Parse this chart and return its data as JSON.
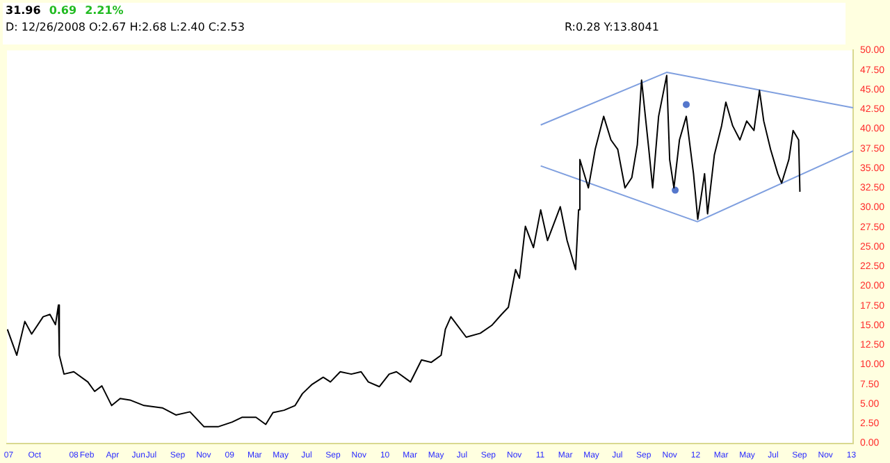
{
  "chart_data": {
    "type": "line",
    "annotations": [
      "31.96",
      "0.69",
      "2.21%",
      "D: 12/26/2008 O:2.67 H:2.68 L:2.40 C:2.53",
      "R:0.28 Y:13.8041"
    ],
    "xlim": [
      "2007-07-28",
      "2013-01-05"
    ],
    "xticks": [
      {
        "value": "2007-08-01",
        "label": "07"
      },
      {
        "value": "2007-10-01",
        "label": "Oct"
      },
      {
        "value": "2008-01-01",
        "label": "08"
      },
      {
        "value": "2008-02-01",
        "label": "Feb"
      },
      {
        "value": "2008-04-01",
        "label": "Apr"
      },
      {
        "value": "2008-06-01",
        "label": "Jun"
      },
      {
        "value": "2008-07-01",
        "label": "Jul"
      },
      {
        "value": "2008-09-01",
        "label": "Sep"
      },
      {
        "value": "2008-11-01",
        "label": "Nov"
      },
      {
        "value": "2009-01-01",
        "label": "09"
      },
      {
        "value": "2009-03-01",
        "label": "Mar"
      },
      {
        "value": "2009-05-01",
        "label": "May"
      },
      {
        "value": "2009-07-01",
        "label": "Jul"
      },
      {
        "value": "2009-09-01",
        "label": "Sep"
      },
      {
        "value": "2009-11-01",
        "label": "Nov"
      },
      {
        "value": "2010-01-01",
        "label": "10"
      },
      {
        "value": "2010-03-01",
        "label": "Mar"
      },
      {
        "value": "2010-05-01",
        "label": "May"
      },
      {
        "value": "2010-07-01",
        "label": "Jul"
      },
      {
        "value": "2010-09-01",
        "label": "Sep"
      },
      {
        "value": "2010-11-01",
        "label": "Nov"
      },
      {
        "value": "2011-01-01",
        "label": "11"
      },
      {
        "value": "2011-03-01",
        "label": "Mar"
      },
      {
        "value": "2011-05-01",
        "label": "May"
      },
      {
        "value": "2011-07-01",
        "label": "Jul"
      },
      {
        "value": "2011-09-01",
        "label": "Sep"
      },
      {
        "value": "2011-11-01",
        "label": "Nov"
      },
      {
        "value": "2012-01-01",
        "label": "12"
      },
      {
        "value": "2012-03-01",
        "label": "Mar"
      },
      {
        "value": "2012-05-01",
        "label": "May"
      },
      {
        "value": "2012-07-01",
        "label": "Jul"
      },
      {
        "value": "2012-09-01",
        "label": "Sep"
      },
      {
        "value": "2012-11-01",
        "label": "Nov"
      },
      {
        "value": "2013-01-01",
        "label": "13"
      }
    ],
    "ylim": [
      0,
      50
    ],
    "yticks": [
      {
        "value": 0,
        "label": "0.00"
      },
      {
        "value": 2.5,
        "label": "2.50"
      },
      {
        "value": 5,
        "label": "5.00"
      },
      {
        "value": 7.5,
        "label": "7.50"
      },
      {
        "value": 10,
        "label": "10.00"
      },
      {
        "value": 12.5,
        "label": "12.50"
      },
      {
        "value": 15,
        "label": "15.00"
      },
      {
        "value": 17.5,
        "label": "17.50"
      },
      {
        "value": 20,
        "label": "20.00"
      },
      {
        "value": 22.5,
        "label": "22.50"
      },
      {
        "value": 25,
        "label": "25.00"
      },
      {
        "value": 27.5,
        "label": "27.50"
      },
      {
        "value": 30,
        "label": "30.00"
      },
      {
        "value": 32.5,
        "label": "32.50"
      },
      {
        "value": 35,
        "label": "35.00"
      },
      {
        "value": 37.5,
        "label": "37.50"
      },
      {
        "value": 40,
        "label": "40.00"
      },
      {
        "value": 42.5,
        "label": "42.50"
      },
      {
        "value": 45,
        "label": "45.00"
      },
      {
        "value": 47.5,
        "label": "47.50"
      },
      {
        "value": 50,
        "label": "50.00"
      }
    ],
    "grid": false,
    "legend": false,
    "series": [
      {
        "color": "#000000",
        "x": [
          "2007-07-29",
          "2007-08-20",
          "2007-09-08",
          "2007-09-24",
          "2007-10-21",
          "2007-11-06",
          "2007-11-19",
          "2007-11-26",
          "2007-11-28",
          "2007-12-09",
          "2008-01-01",
          "2008-02-03",
          "2008-02-19",
          "2008-03-07",
          "2008-03-30",
          "2008-04-19",
          "2008-05-12",
          "2008-06-14",
          "2008-07-27",
          "2008-08-28",
          "2008-09-30",
          "2008-11-02",
          "2008-12-05",
          "2009-01-07",
          "2009-01-30",
          "2009-03-04",
          "2009-03-27",
          "2009-04-13",
          "2009-05-09",
          "2009-06-04",
          "2009-06-21",
          "2009-07-14",
          "2009-08-09",
          "2009-08-26",
          "2009-09-18",
          "2009-10-14",
          "2009-11-06",
          "2009-11-23",
          "2009-12-19",
          "2010-01-11",
          "2010-01-28",
          "2010-03-02",
          "2010-03-28",
          "2010-04-20",
          "2010-05-13",
          "2010-05-23",
          "2010-06-05",
          "2010-07-11",
          "2010-08-13",
          "2010-09-09",
          "2010-10-02",
          "2010-10-18",
          "2010-11-04",
          "2010-11-13",
          "2010-11-27",
          "2010-12-16",
          "2011-01-02",
          "2011-01-18",
          "2011-02-17",
          "2011-03-05",
          "2011-03-25",
          "2011-04-01",
          "2011-04-04",
          "2011-04-24",
          "2011-05-10",
          "2011-05-30",
          "2011-06-16",
          "2011-07-02",
          "2011-07-19",
          "2011-08-04",
          "2011-08-17",
          "2011-08-27",
          "2011-09-13",
          "2011-09-22",
          "2011-10-06",
          "2011-10-25",
          "2011-11-01",
          "2011-11-11",
          "2011-11-24",
          "2011-12-10",
          "2011-12-27",
          "2012-01-06",
          "2012-01-22",
          "2012-01-29",
          "2012-02-14",
          "2012-03-02",
          "2012-03-12",
          "2012-03-28",
          "2012-04-14",
          "2012-04-30",
          "2012-05-17",
          "2012-05-30",
          "2012-06-09",
          "2012-06-25",
          "2012-07-12",
          "2012-07-21",
          "2012-08-07",
          "2012-08-17",
          "2012-08-30",
          "2012-09-02"
        ],
        "values": [
          14.5,
          11.2,
          15.5,
          13.9,
          16.1,
          16.4,
          15.1,
          17.6,
          11.2,
          8.8,
          9.1,
          7.8,
          6.6,
          7.3,
          4.8,
          5.7,
          5.5,
          4.8,
          4.5,
          3.6,
          4.0,
          2.1,
          2.1,
          2.7,
          3.3,
          3.3,
          2.4,
          3.9,
          4.2,
          4.8,
          6.3,
          7.5,
          8.4,
          7.8,
          9.1,
          8.8,
          9.1,
          7.8,
          7.2,
          8.8,
          9.1,
          7.8,
          10.6,
          10.3,
          11.2,
          14.5,
          16.1,
          13.5,
          14,
          15,
          16.4,
          17.3,
          22.1,
          21,
          27.6,
          24.9,
          29.7,
          25.8,
          30.1,
          25.8,
          22.1,
          29.7,
          36.1,
          32.5,
          37.4,
          41.6,
          38.6,
          37.4,
          32.5,
          33.8,
          38,
          46.2,
          37.4,
          32.5,
          41.6,
          46.8,
          36.1,
          32.5,
          38.6,
          41.6,
          34.3,
          28.5,
          34.3,
          29.2,
          36.7,
          40.4,
          43.4,
          40.4,
          38.6,
          41,
          39.8,
          44.9,
          41,
          37.4,
          34.3,
          33.1,
          36.1,
          39.8,
          38.6,
          32
        ]
      },
      {
        "type": "line",
        "color": "#7f9fdf",
        "x": [
          "2011-01-02",
          "2011-10-25",
          "2013-01-05"
        ],
        "values": [
          40.5,
          47.2,
          42.7
        ]
      },
      {
        "type": "line",
        "color": "#7f9fdf",
        "x": [
          "2011-01-02",
          "2012-01-05",
          "2013-01-05"
        ],
        "values": [
          35.3,
          28.2,
          37.2
        ]
      },
      {
        "type": "scatter",
        "color": "#5577cc",
        "x": [
          "2011-11-14",
          "2011-12-10"
        ],
        "values": [
          32.2,
          43.1
        ]
      }
    ]
  }
}
